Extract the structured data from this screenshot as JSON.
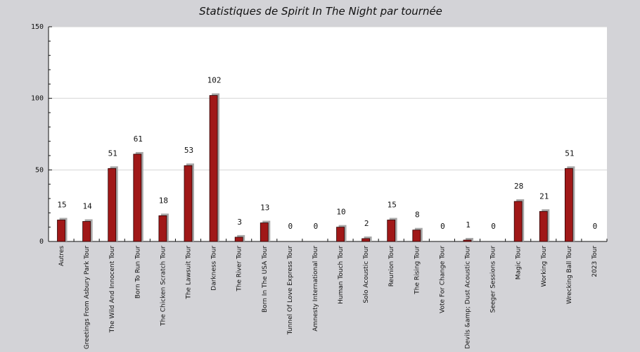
{
  "chart_data": {
    "type": "bar",
    "title": "Statistiques de Spirit In The Night par tournée",
    "xlabel": "",
    "ylabel": "",
    "ylim": [
      0,
      150
    ],
    "yticks": [
      0,
      50,
      100,
      150
    ],
    "grid": true,
    "categories": [
      "Autres",
      "Greetings From Asbury Park Tour",
      "The Wild And Innocent Tour",
      "Born To Run Tour",
      "The Chicken Scratch Tour",
      "The Lawsuit Tour",
      "Darkness Tour",
      "The River Tour",
      "Born In The USA Tour",
      "Tunnel Of Love Express Tour",
      "Amnesty International Tour",
      "Human Touch Tour",
      "Solo Acoustic Tour",
      "Reunion Tour",
      "The Rising Tour",
      "Vote For Change Tour",
      "Devils &amp; Dust Acoustic Tour",
      "Seeger Sessions Tour",
      "Magic Tour",
      "Working Tour",
      "Wrecking Ball Tour",
      "2023 Tour"
    ],
    "values": [
      15,
      14,
      51,
      61,
      18,
      53,
      102,
      3,
      13,
      0,
      0,
      10,
      2,
      15,
      8,
      0,
      1,
      0,
      28,
      21,
      51,
      0
    ],
    "colors": {
      "bar": "#a01818",
      "shadow": "#a8a8a8",
      "plot_background": "#ffffff",
      "outer_background": "#d3d3d7",
      "grid": "#d4d4d4"
    }
  }
}
